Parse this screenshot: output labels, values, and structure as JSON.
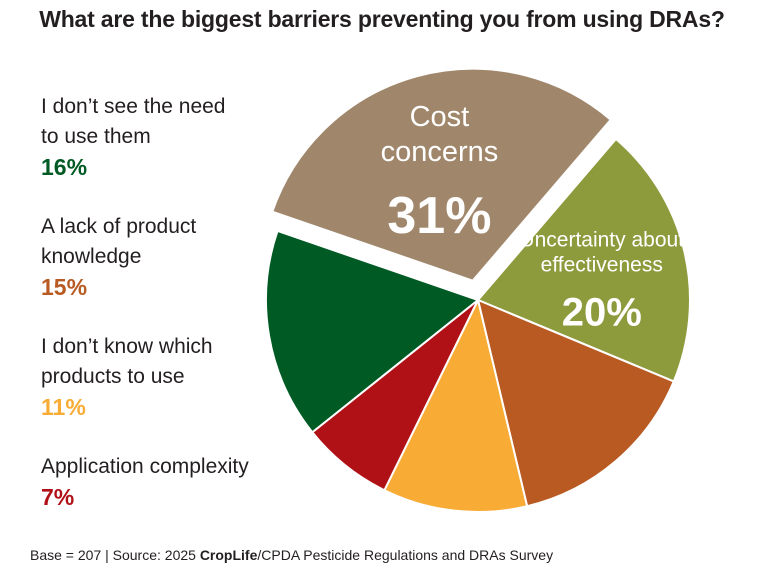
{
  "chart_data": {
    "type": "pie",
    "title": "What are the biggest barriers preventing you from using DRAs?",
    "slices": [
      {
        "label_lines": [
          "Cost",
          "concerns"
        ],
        "value": 31,
        "value_text": "31%",
        "color": "#a0876b",
        "exploded": true,
        "inside_label": true
      },
      {
        "label_lines": [
          "Uncertainty about",
          "effectiveness"
        ],
        "value": 20,
        "value_text": "20%",
        "color": "#8e9b3d",
        "exploded": false,
        "inside_label": true
      },
      {
        "label_lines": [
          "A lack of product",
          "knowledge"
        ],
        "value": 15,
        "value_text": "15%",
        "color": "#b85a22",
        "exploded": false,
        "inside_label": false
      },
      {
        "label_lines": [
          "I don’t know which",
          "products to use"
        ],
        "value": 11,
        "value_text": "11%",
        "color": "#f8ac36",
        "exploded": false,
        "inside_label": false
      },
      {
        "label_lines": [
          "Application complexity"
        ],
        "value": 7,
        "value_text": "7%",
        "color": "#b01116",
        "exploded": false,
        "inside_label": false
      },
      {
        "label_lines": [
          "I don’t see the need",
          "to use them"
        ],
        "value": 16,
        "value_text": "16%",
        "color": "#005a24",
        "exploded": false,
        "inside_label": false
      }
    ],
    "legend": [
      {
        "line1": "I don’t see the need",
        "line2": "to use them",
        "pct": "16%",
        "color": "#005a24"
      },
      {
        "line1": "A lack of product",
        "line2": "knowledge",
        "pct": "15%",
        "color": "#b85a22"
      },
      {
        "line1": "I don’t know which",
        "line2": "products to use",
        "pct": "11%",
        "color": "#f8ac36"
      },
      {
        "line1": "Application complexity",
        "line2": "",
        "pct": "7%",
        "color": "#b01116"
      }
    ]
  },
  "footer": {
    "prefix": "Base = 207 | Source: 2025 ",
    "brand": "CropLife",
    "suffix": "/CPDA Pesticide Regulations and DRAs Survey"
  }
}
